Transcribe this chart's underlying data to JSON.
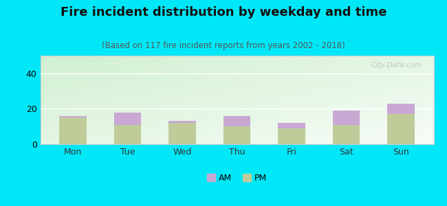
{
  "title": "Fire incident distribution by weekday and time",
  "subtitle": "(Based on 117 fire incident reports from years 2002 - 2018)",
  "categories": [
    "Mon",
    "Tue",
    "Wed",
    "Thu",
    "Fri",
    "Sat",
    "Sun"
  ],
  "pm_values": [
    15,
    11,
    12,
    10,
    9,
    11,
    17
  ],
  "am_values": [
    1,
    7,
    1,
    6,
    3,
    8,
    6
  ],
  "am_color": "#c9a8d4",
  "pm_color": "#bfcc99",
  "background_outer": "#00e8f8",
  "ylim": [
    0,
    50
  ],
  "yticks": [
    0,
    20,
    40
  ],
  "title_fontsize": 13,
  "subtitle_fontsize": 8.5,
  "bar_width": 0.5,
  "watermark": "City-Data.com"
}
